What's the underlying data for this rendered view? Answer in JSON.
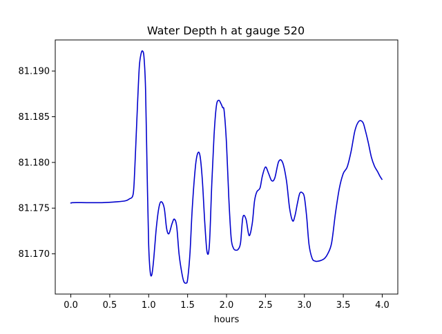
{
  "chart_data": {
    "type": "line",
    "title": "Water Depth h at gauge 520",
    "xlabel": "hours",
    "ylabel": "",
    "xlim": [
      -0.2,
      4.2
    ],
    "ylim": [
      81.1656,
      81.1934
    ],
    "xticks": [
      0.0,
      0.5,
      1.0,
      1.5,
      2.0,
      2.5,
      3.0,
      3.5,
      4.0
    ],
    "xtick_labels": [
      "0.0",
      "0.5",
      "1.0",
      "1.5",
      "2.0",
      "2.5",
      "3.0",
      "3.5",
      "4.0"
    ],
    "yticks": [
      81.17,
      81.175,
      81.18,
      81.185,
      81.19
    ],
    "ytick_labels": [
      "81.170",
      "81.175",
      "81.180",
      "81.185",
      "81.190"
    ],
    "grid": false,
    "legend": "none",
    "series": [
      {
        "color": "#0000cc",
        "x": [
          0.0,
          0.02,
          0.2,
          0.4,
          0.6,
          0.7,
          0.75,
          0.8,
          0.82,
          0.84,
          0.86,
          0.88,
          0.9,
          0.92,
          0.94,
          0.96,
          0.98,
          1.0,
          1.02,
          1.04,
          1.06,
          1.08,
          1.1,
          1.13,
          1.16,
          1.2,
          1.23,
          1.26,
          1.3,
          1.33,
          1.36,
          1.39,
          1.42,
          1.45,
          1.48,
          1.5,
          1.53,
          1.56,
          1.6,
          1.63,
          1.66,
          1.69,
          1.72,
          1.75,
          1.78,
          1.81,
          1.84,
          1.87,
          1.9,
          1.93,
          1.95,
          1.97,
          2.0,
          2.03,
          2.06,
          2.09,
          2.12,
          2.15,
          2.18,
          2.21,
          2.25,
          2.29,
          2.33,
          2.36,
          2.39,
          2.43,
          2.46,
          2.5,
          2.54,
          2.58,
          2.62,
          2.67,
          2.72,
          2.77,
          2.81,
          2.85,
          2.88,
          2.91,
          2.94,
          2.97,
          3.0,
          3.03,
          3.06,
          3.1,
          3.14,
          3.18,
          3.22,
          3.26,
          3.3,
          3.35,
          3.4,
          3.45,
          3.5,
          3.55,
          3.6,
          3.65,
          3.7,
          3.75,
          3.78,
          3.82,
          3.86,
          3.9,
          3.94,
          3.97,
          4.0
        ],
        "y": [
          81.1755,
          81.1756,
          81.1756,
          81.1756,
          81.1757,
          81.1758,
          81.176,
          81.1765,
          81.179,
          81.183,
          81.187,
          81.1905,
          81.1918,
          81.1922,
          81.1915,
          81.188,
          81.179,
          81.171,
          81.168,
          81.1677,
          81.169,
          81.171,
          81.173,
          81.175,
          81.1757,
          81.175,
          81.1728,
          81.1722,
          81.1733,
          81.1738,
          81.173,
          81.17,
          81.1682,
          81.167,
          81.1668,
          81.1672,
          81.17,
          81.175,
          81.1795,
          81.181,
          81.1807,
          81.178,
          81.1735,
          81.1702,
          81.171,
          81.1775,
          81.183,
          81.1862,
          81.1868,
          81.1864,
          81.186,
          81.1856,
          81.182,
          81.176,
          81.1717,
          81.1706,
          81.1704,
          81.1705,
          81.1712,
          81.174,
          81.1738,
          81.172,
          81.1733,
          81.1758,
          81.1768,
          81.1772,
          81.1785,
          81.1795,
          81.1788,
          81.178,
          81.1783,
          81.1801,
          81.18,
          81.178,
          81.175,
          81.1736,
          81.1742,
          81.1755,
          81.1766,
          81.1767,
          81.1762,
          81.174,
          81.171,
          81.1695,
          81.1692,
          81.1692,
          81.1693,
          81.1695,
          81.17,
          81.1712,
          81.1745,
          81.1772,
          81.1788,
          81.1795,
          81.1812,
          81.1835,
          81.1845,
          81.1844,
          81.1836,
          81.1822,
          81.1806,
          81.1796,
          81.179,
          81.1785,
          81.1781
        ]
      }
    ]
  }
}
